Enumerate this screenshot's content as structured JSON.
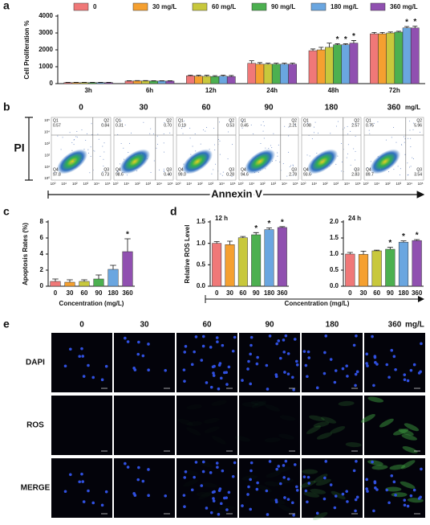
{
  "panel_letters": [
    "a",
    "b",
    "c",
    "d",
    "e"
  ],
  "chart_data": [
    {
      "type": "bar",
      "y_label": "Cell Proliferation %",
      "categories": [
        "3h",
        "6h",
        "12h",
        "24h",
        "48h",
        "72h"
      ],
      "series": [
        {
          "name": "0",
          "color": "#f07878",
          "values": [
            60,
            150,
            460,
            1200,
            1950,
            2950
          ],
          "errors": [
            15,
            20,
            40,
            150,
            100,
            80
          ]
        },
        {
          "name": "30 mg/L",
          "color": "#f5a030",
          "values": [
            60,
            160,
            440,
            1150,
            2000,
            2950
          ],
          "errors": [
            15,
            20,
            50,
            90,
            150,
            80
          ]
        },
        {
          "name": "60 mg/L",
          "color": "#c8c83c",
          "values": [
            60,
            155,
            430,
            1150,
            2150,
            3000
          ],
          "errors": [
            15,
            20,
            60,
            60,
            250,
            60
          ]
        },
        {
          "name": "90 mg/L",
          "color": "#4cb050",
          "values": [
            60,
            150,
            420,
            1150,
            2300,
            3050
          ],
          "errors": [
            15,
            20,
            50,
            60,
            60,
            50
          ],
          "significance": [
            null,
            null,
            null,
            null,
            "*",
            null
          ]
        },
        {
          "name": "180 mg/L",
          "color": "#6aa6e0",
          "values": [
            60,
            150,
            440,
            1150,
            2300,
            3300
          ],
          "errors": [
            15,
            20,
            60,
            60,
            60,
            80
          ],
          "significance": [
            null,
            null,
            null,
            null,
            "*",
            "*"
          ]
        },
        {
          "name": "360 mg/L",
          "color": "#9050b0",
          "values": [
            60,
            150,
            420,
            1150,
            2400,
            3300
          ],
          "errors": [
            15,
            20,
            60,
            60,
            150,
            100
          ],
          "significance": [
            null,
            null,
            null,
            null,
            "*",
            "*"
          ]
        }
      ],
      "ylim": [
        0,
        4000
      ],
      "yticks": [
        0,
        1000,
        2000,
        3000,
        4000
      ]
    },
    {
      "type": "bar",
      "y_label": "Apoptosis Rates (%)",
      "x_label": "Concentration (mg/L)",
      "categories": [
        "0",
        "30",
        "60",
        "90",
        "180",
        "360"
      ],
      "values": [
        0.6,
        0.5,
        0.6,
        0.9,
        2.1,
        4.3
      ],
      "errors": [
        0.3,
        0.3,
        0.2,
        0.5,
        0.5,
        1.6
      ],
      "colors": [
        "#f07878",
        "#f5a030",
        "#c8c83c",
        "#4cb050",
        "#6aa6e0",
        "#9050b0"
      ],
      "significance": [
        null,
        null,
        null,
        null,
        null,
        "*"
      ],
      "ylim": [
        0,
        8
      ],
      "yticks": [
        0,
        2,
        4,
        6,
        8
      ]
    },
    {
      "type": "bar",
      "title": "12 h",
      "y_label": "Relative ROS Level",
      "x_label": "Concentration (mg/L)",
      "categories": [
        "0",
        "30",
        "60",
        "90",
        "180",
        "360"
      ],
      "values": [
        1.0,
        0.97,
        1.13,
        1.2,
        1.32,
        1.37
      ],
      "errors": [
        0.04,
        0.08,
        0.03,
        0.05,
        0.04,
        0.02
      ],
      "colors": [
        "#f07878",
        "#f5a030",
        "#c8c83c",
        "#4cb050",
        "#6aa6e0",
        "#9050b0"
      ],
      "significance": [
        null,
        null,
        null,
        "*",
        "*",
        "*"
      ],
      "ylim": [
        0,
        1.5
      ],
      "yticks": [
        {
          "value": 0,
          "label": "0.0"
        },
        {
          "value": 0.5,
          "label": "0.5"
        },
        {
          "value": 1,
          "label": "1.0"
        },
        {
          "value": 1.5,
          "label": "1.5"
        }
      ]
    },
    {
      "type": "bar",
      "title": "24 h",
      "categories": [
        "0",
        "30",
        "60",
        "90",
        "180",
        "360"
      ],
      "values": [
        1.0,
        0.99,
        1.1,
        1.15,
        1.37,
        1.42
      ],
      "errors": [
        0.05,
        0.1,
        0.02,
        0.06,
        0.04,
        0.03
      ],
      "colors": [
        "#f07878",
        "#f5a030",
        "#c8c83c",
        "#4cb050",
        "#6aa6e0",
        "#9050b0"
      ],
      "significance": [
        null,
        null,
        null,
        "*",
        "*",
        "*"
      ],
      "ylim": [
        0,
        2
      ],
      "yticks": [
        {
          "value": 0,
          "label": "0.0"
        },
        {
          "value": 0.5,
          "label": "0.5"
        },
        {
          "value": 1,
          "label": "1.0"
        },
        {
          "value": 1.5,
          "label": "1.5"
        },
        {
          "value": 2,
          "label": "2.0"
        }
      ]
    }
  ],
  "flow_panel": {
    "concentrations": [
      "0",
      "30",
      "60",
      "90",
      "180",
      "360"
    ],
    "unit": "mg/L",
    "y_label": "PI",
    "x_label": "Annexin V",
    "tick_labels": [
      "10⁰",
      "10¹",
      "10²",
      "10³",
      "10⁴",
      "10⁵"
    ],
    "quadrant_names": [
      "Q1",
      "Q2",
      "Q3",
      "Q4"
    ],
    "plots": [
      [
        "0.57",
        "0.84",
        "0.73",
        "97.8"
      ],
      [
        "0.31",
        "0.70",
        "0.40",
        "98.6"
      ],
      [
        "0.19",
        "0.53",
        "0.28",
        "99.0"
      ],
      [
        "0.45",
        "2.21",
        "2.78",
        "94.6"
      ],
      [
        "0.98",
        "2.57",
        "2.83",
        "93.6"
      ],
      [
        "0.75",
        "5.96",
        "3.54",
        "89.7"
      ]
    ]
  },
  "micrograph_panel": {
    "concentrations": [
      "0",
      "30",
      "60",
      "90",
      "180",
      "360"
    ],
    "unit": "mg/L",
    "rows": [
      "DAPI",
      "ROS",
      "MERGE"
    ]
  }
}
